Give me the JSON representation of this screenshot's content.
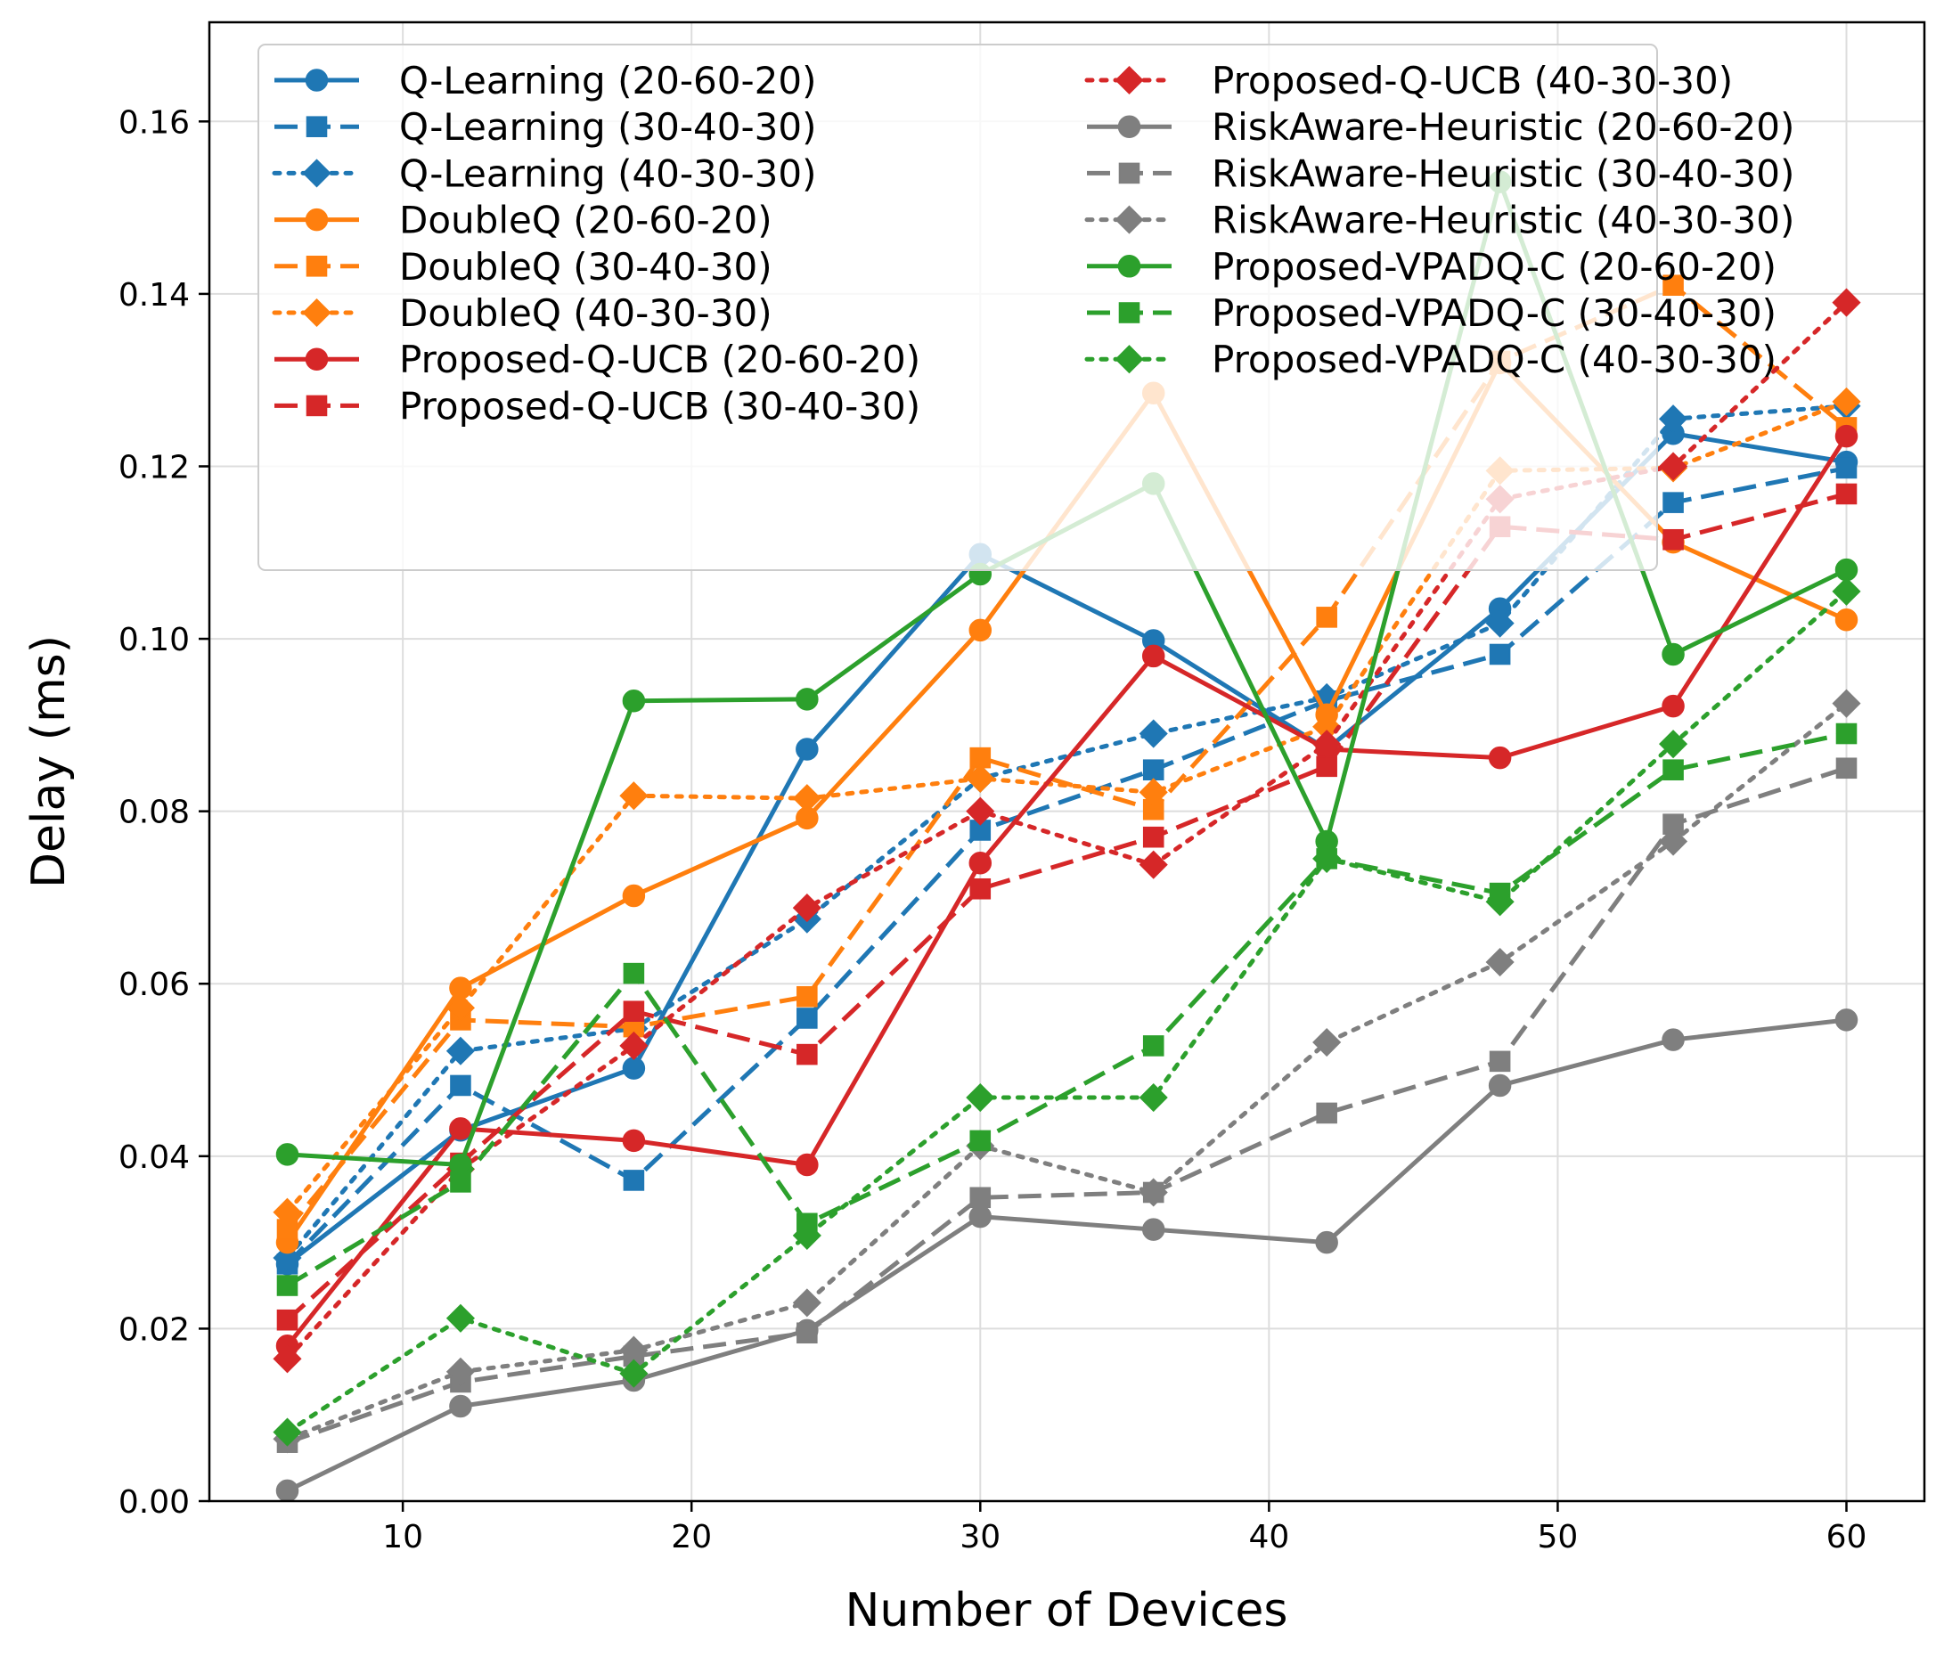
{
  "chart_data": {
    "type": "line",
    "title": "",
    "xlabel": "Number of Devices",
    "ylabel": "Delay (ms)",
    "xlim": [
      3.3,
      62.7
    ],
    "ylim": [
      0.0,
      0.1715
    ],
    "x_ticks": [
      10,
      20,
      30,
      40,
      50,
      60
    ],
    "x_tick_labels": [
      "10",
      "20",
      "30",
      "40",
      "50",
      "60"
    ],
    "y_ticks": [
      0.0,
      0.02,
      0.04,
      0.06,
      0.08,
      0.1,
      0.12,
      0.14,
      0.16
    ],
    "y_tick_labels": [
      "0.00",
      "0.02",
      "0.04",
      "0.06",
      "0.08",
      "0.10",
      "0.12",
      "0.14",
      "0.16"
    ],
    "grid": true,
    "legend_position": "upper-center",
    "x": [
      6,
      12,
      18,
      24,
      30,
      36,
      42,
      48,
      54,
      60
    ],
    "series": [
      {
        "name": "Q-Learning (20-60-20)",
        "color": "#1f77b4",
        "linestyle": "solid",
        "marker": "circle",
        "values": [
          0.0275,
          0.043,
          0.0502,
          0.0872,
          0.1098,
          0.0998,
          0.0872,
          0.1035,
          0.1238,
          0.1205
        ]
      },
      {
        "name": "Q-Learning (30-40-30)",
        "color": "#1f77b4",
        "linestyle": "dashed",
        "marker": "square",
        "values": [
          0.0275,
          0.0482,
          0.0372,
          0.056,
          0.0778,
          0.0848,
          0.0928,
          0.0982,
          0.1158,
          0.1198
        ]
      },
      {
        "name": "Q-Learning (40-30-30)",
        "color": "#1f77b4",
        "linestyle": "dotted",
        "marker": "diamond",
        "values": [
          0.0282,
          0.0522,
          0.0548,
          0.0675,
          0.0838,
          0.089,
          0.0932,
          0.1018,
          0.1255,
          0.127
        ]
      },
      {
        "name": "DoubleQ (20-60-20)",
        "color": "#ff7f0e",
        "linestyle": "solid",
        "marker": "circle",
        "values": [
          0.03,
          0.0595,
          0.0702,
          0.0792,
          0.101,
          0.1285,
          0.0912,
          0.132,
          0.1112,
          0.1022
        ]
      },
      {
        "name": "DoubleQ (30-40-30)",
        "color": "#ff7f0e",
        "linestyle": "dashed",
        "marker": "square",
        "values": [
          0.0315,
          0.0558,
          0.055,
          0.0585,
          0.0862,
          0.0802,
          0.1025,
          0.1322,
          0.141,
          0.1245
        ]
      },
      {
        "name": "DoubleQ (40-30-30)",
        "color": "#ff7f0e",
        "linestyle": "dotted",
        "marker": "diamond",
        "values": [
          0.0335,
          0.0572,
          0.0818,
          0.0815,
          0.0838,
          0.0822,
          0.0898,
          0.1195,
          0.1198,
          0.1275
        ]
      },
      {
        "name": "Proposed-Q-UCB (20-60-20)",
        "color": "#d62728",
        "linestyle": "solid",
        "marker": "circle",
        "values": [
          0.018,
          0.0432,
          0.0418,
          0.039,
          0.074,
          0.098,
          0.0872,
          0.0862,
          0.0922,
          0.1235
        ]
      },
      {
        "name": "Proposed-Q-UCB (30-40-30)",
        "color": "#d62728",
        "linestyle": "dashed",
        "marker": "square",
        "values": [
          0.021,
          0.0392,
          0.0568,
          0.0518,
          0.071,
          0.077,
          0.0852,
          0.113,
          0.1115,
          0.1168
        ]
      },
      {
        "name": "Proposed-Q-UCB (40-30-30)",
        "color": "#d62728",
        "linestyle": "dotted",
        "marker": "diamond",
        "values": [
          0.0165,
          0.0385,
          0.0528,
          0.0688,
          0.08,
          0.0738,
          0.0878,
          0.1162,
          0.12,
          0.139
        ]
      },
      {
        "name": "RiskAware-Heuristic (20-60-20)",
        "color": "#7f7f7f",
        "linestyle": "solid",
        "marker": "circle",
        "values": [
          0.0012,
          0.011,
          0.014,
          0.0198,
          0.033,
          0.0315,
          0.03,
          0.0482,
          0.0535,
          0.0558
        ]
      },
      {
        "name": "RiskAware-Heuristic (30-40-30)",
        "color": "#7f7f7f",
        "linestyle": "dashed",
        "marker": "square",
        "values": [
          0.0068,
          0.0138,
          0.0168,
          0.0195,
          0.0352,
          0.0358,
          0.045,
          0.051,
          0.0785,
          0.085
        ]
      },
      {
        "name": "RiskAware-Heuristic (40-30-30)",
        "color": "#7f7f7f",
        "linestyle": "dotted",
        "marker": "diamond",
        "values": [
          0.0072,
          0.015,
          0.0175,
          0.023,
          0.0412,
          0.0358,
          0.0532,
          0.0625,
          0.0765,
          0.0925
        ]
      },
      {
        "name": "Proposed-VPADQ-C (20-60-20)",
        "color": "#2ca02c",
        "linestyle": "solid",
        "marker": "circle",
        "values": [
          0.0402,
          0.039,
          0.0928,
          0.093,
          0.1075,
          0.118,
          0.0765,
          0.153,
          0.0982,
          0.108
        ]
      },
      {
        "name": "Proposed-VPADQ-C (30-40-30)",
        "color": "#2ca02c",
        "linestyle": "dashed",
        "marker": "square",
        "values": [
          0.025,
          0.037,
          0.0612,
          0.0322,
          0.0418,
          0.0528,
          0.0745,
          0.0705,
          0.0848,
          0.089
        ]
      },
      {
        "name": "Proposed-VPADQ-C (40-30-30)",
        "color": "#2ca02c",
        "linestyle": "dotted",
        "marker": "diamond",
        "values": [
          0.008,
          0.0212,
          0.0148,
          0.0308,
          0.0468,
          0.0468,
          0.0745,
          0.0695,
          0.0878,
          0.1055
        ]
      }
    ]
  }
}
